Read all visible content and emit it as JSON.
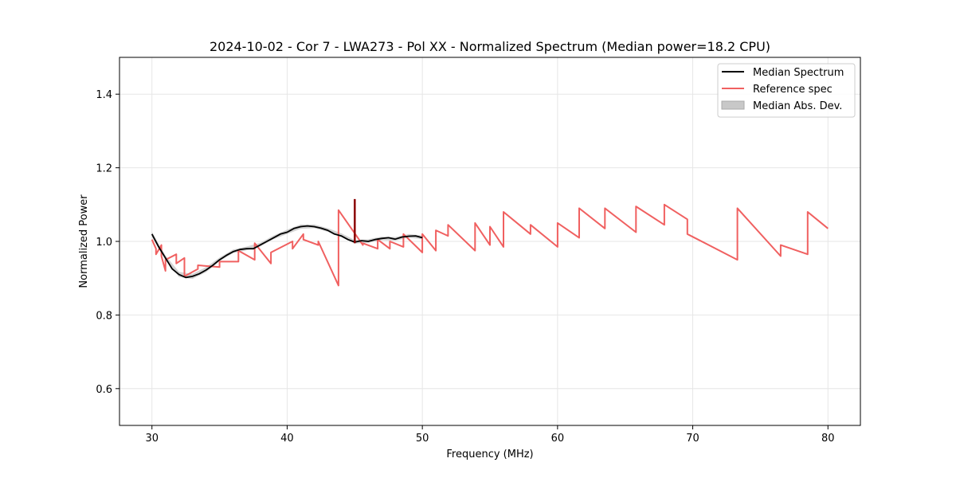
{
  "chart_data": {
    "type": "line",
    "title": "2024-10-02 - Cor 7 - LWA273 - Pol XX - Normalized Spectrum (Median power=18.2 CPU)",
    "xlabel": "Frequency (MHz)",
    "ylabel": "Normalized Power",
    "xlim": [
      27.6,
      82.4
    ],
    "ylim": [
      0.5,
      1.5
    ],
    "xticks": [
      30,
      40,
      50,
      60,
      70,
      80
    ],
    "yticks": [
      0.6,
      0.8,
      1.0,
      1.2,
      1.4
    ],
    "xtick_labels": [
      "30",
      "40",
      "50",
      "60",
      "70",
      "80"
    ],
    "ytick_labels": [
      "0.6",
      "0.8",
      "1.0",
      "1.2",
      "1.4"
    ],
    "grid": true,
    "legend_position": "top-right",
    "legend": [
      "Median Spectrum",
      "Reference spec",
      "Median Abs. Dev."
    ],
    "colors": {
      "median": "#000000",
      "reference": "#f06060",
      "mad": "#c8c8c8",
      "spike": "#8b0000",
      "grid": "#e6e6e6"
    },
    "series": [
      {
        "name": "Median Spectrum",
        "x": [
          30.0,
          30.5,
          31.0,
          31.5,
          32.0,
          32.5,
          33.0,
          33.5,
          34.0,
          34.5,
          35.0,
          35.5,
          36.0,
          36.5,
          37.0,
          37.5,
          38.0,
          38.5,
          39.0,
          39.5,
          40.0,
          40.5,
          41.0,
          41.5,
          42.0,
          42.5,
          43.0,
          43.5,
          44.0,
          44.5,
          45.0,
          45.5,
          46.0,
          46.5,
          47.0,
          47.5,
          48.0,
          48.5,
          49.0,
          49.5,
          50.0
        ],
        "y": [
          1.02,
          0.985,
          0.955,
          0.925,
          0.91,
          0.902,
          0.905,
          0.912,
          0.922,
          0.935,
          0.95,
          0.962,
          0.972,
          0.978,
          0.98,
          0.98,
          0.99,
          1.0,
          1.01,
          1.02,
          1.025,
          1.035,
          1.04,
          1.042,
          1.04,
          1.036,
          1.03,
          1.02,
          1.015,
          1.005,
          0.998,
          1.002,
          1.0,
          1.005,
          1.008,
          1.01,
          1.006,
          1.012,
          1.014,
          1.015,
          1.01
        ]
      },
      {
        "name": "Reference spec",
        "x": [
          30.0,
          30.3,
          30.3,
          30.7,
          30.7,
          31.0,
          31.0,
          31.8,
          31.8,
          32.4,
          32.4,
          33.4,
          33.4,
          35.0,
          35.0,
          36.4,
          36.4,
          37.6,
          37.6,
          38.8,
          38.8,
          40.4,
          40.4,
          41.2,
          41.2,
          42.3,
          42.3,
          43.8,
          43.8,
          45.6,
          45.6,
          46.7,
          46.7,
          47.6,
          47.6,
          48.6,
          48.6,
          50.0,
          50.0,
          51.0,
          51.0,
          51.9,
          51.9,
          53.9,
          53.9,
          55.0,
          55.0,
          56.0,
          56.0,
          58.0,
          58.0,
          60.0,
          60.0,
          61.6,
          61.6,
          63.5,
          63.5,
          65.8,
          65.8,
          67.9,
          67.9,
          69.6,
          69.6,
          73.3,
          73.3,
          76.5,
          76.5,
          78.5,
          78.5,
          80.0
        ],
        "y": [
          1.005,
          0.98,
          0.965,
          0.99,
          0.96,
          0.92,
          0.95,
          0.965,
          0.94,
          0.955,
          0.905,
          0.925,
          0.935,
          0.93,
          0.945,
          0.945,
          0.975,
          0.95,
          0.995,
          0.94,
          0.97,
          1.0,
          0.98,
          1.02,
          1.005,
          0.99,
          1.0,
          0.88,
          1.085,
          0.99,
          0.995,
          0.98,
          1.005,
          0.98,
          1.0,
          0.985,
          1.02,
          0.97,
          1.02,
          0.975,
          1.03,
          1.015,
          1.045,
          0.975,
          1.05,
          0.99,
          1.04,
          0.985,
          1.08,
          1.02,
          1.045,
          0.985,
          1.05,
          1.01,
          1.09,
          1.035,
          1.09,
          1.025,
          1.095,
          1.045,
          1.1,
          1.06,
          1.02,
          0.95,
          1.09,
          0.96,
          0.99,
          0.965,
          1.08,
          1.035
        ]
      }
    ],
    "mad_band": {
      "name": "Median Abs. Dev.",
      "x": [
        30.0,
        31.0,
        32.0,
        33.0,
        34.0,
        35.0,
        36.0,
        37.0,
        38.0,
        39.0,
        40.0,
        41.0,
        42.0,
        43.0,
        44.0,
        45.0,
        46.0,
        47.0,
        48.0,
        49.0,
        50.0
      ],
      "lower": [
        1.012,
        0.948,
        0.903,
        0.898,
        0.916,
        0.946,
        0.968,
        0.976,
        0.986,
        1.006,
        1.02,
        1.034,
        1.036,
        1.026,
        1.012,
        0.994,
        0.996,
        1.003,
        1.002,
        1.01,
        1.006
      ],
      "upper": [
        1.026,
        0.962,
        0.917,
        0.912,
        0.93,
        0.956,
        0.978,
        0.986,
        0.996,
        1.016,
        1.032,
        1.046,
        1.046,
        1.036,
        1.022,
        1.004,
        1.006,
        1.013,
        1.012,
        1.02,
        1.016
      ]
    },
    "spike": {
      "x": 45.0,
      "y_low": 0.995,
      "y_high": 1.115
    }
  }
}
